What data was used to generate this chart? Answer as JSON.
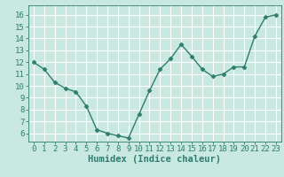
{
  "x": [
    0,
    1,
    2,
    3,
    4,
    5,
    6,
    7,
    8,
    9,
    10,
    11,
    12,
    13,
    14,
    15,
    16,
    17,
    18,
    19,
    20,
    21,
    22,
    23
  ],
  "y": [
    12.0,
    11.4,
    10.3,
    9.8,
    9.5,
    8.3,
    6.3,
    6.0,
    5.8,
    5.6,
    7.6,
    9.6,
    11.4,
    12.3,
    13.5,
    12.5,
    11.4,
    10.8,
    11.0,
    11.6,
    11.6,
    14.2,
    15.8,
    16.0
  ],
  "xlabel": "Humidex (Indice chaleur)",
  "xlim": [
    -0.5,
    23.5
  ],
  "ylim": [
    5.3,
    16.8
  ],
  "yticks": [
    6,
    7,
    8,
    9,
    10,
    11,
    12,
    13,
    14,
    15,
    16
  ],
  "xticks": [
    0,
    1,
    2,
    3,
    4,
    5,
    6,
    7,
    8,
    9,
    10,
    11,
    12,
    13,
    14,
    15,
    16,
    17,
    18,
    19,
    20,
    21,
    22,
    23
  ],
  "line_color": "#2e7d6e",
  "marker": "D",
  "marker_size": 2.5,
  "bg_color": "#c8e8e0",
  "grid_color": "#ffffff",
  "tick_label_color": "#2e7d6e",
  "xlabel_color": "#2e7d6e",
  "xlabel_fontsize": 7.5,
  "tick_fontsize": 6.5,
  "linewidth": 1.0
}
